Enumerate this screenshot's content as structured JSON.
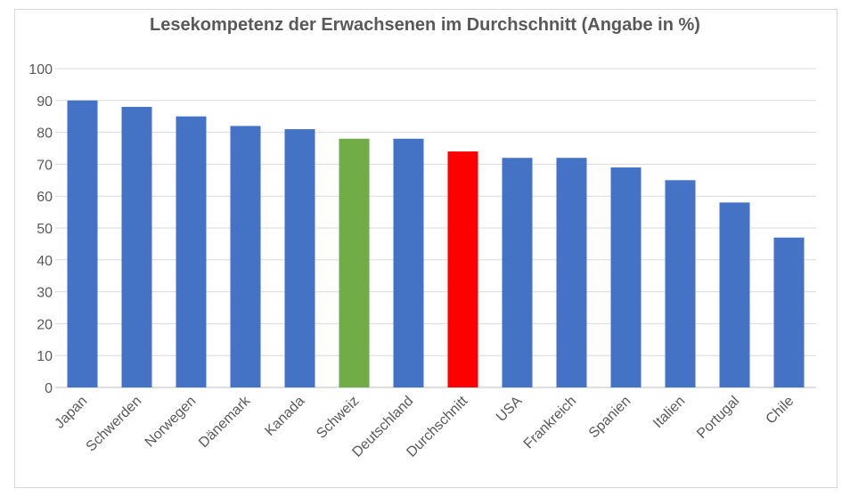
{
  "chart_data": {
    "type": "bar",
    "title": "Lesekompetenz der Erwachsenen im Durchschnitt (Angabe in %)",
    "xlabel": "",
    "ylabel": "",
    "ylim": [
      0,
      100
    ],
    "yticks": [
      0,
      10,
      20,
      30,
      40,
      50,
      60,
      70,
      80,
      90,
      100
    ],
    "grid": true,
    "legend": "none",
    "categories": [
      "Japan",
      "Schwerden",
      "Norwegen",
      "Dänemark",
      "Kanada",
      "Schweiz",
      "Deutschland",
      "Durchschnitt",
      "USA",
      "Frankreich",
      "Spanien",
      "Italien",
      "Portugal",
      "Chile"
    ],
    "values": [
      90,
      88,
      85,
      82,
      81,
      78,
      78,
      74,
      72,
      72,
      69,
      65,
      58,
      47
    ],
    "colors": {
      "default": "#4472c4",
      "Schweiz": "#70ad47",
      "Durchschnitt": "#ff0000"
    }
  }
}
